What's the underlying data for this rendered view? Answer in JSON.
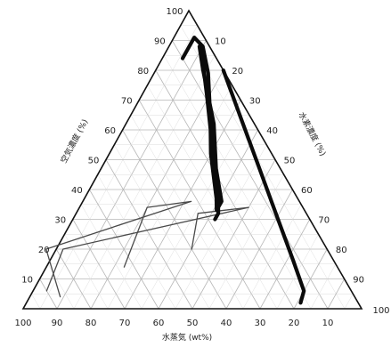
{
  "chart_data": {
    "type": "ternary",
    "title": "",
    "axes": {
      "bottom": {
        "label": "水蒸気 (wt%)",
        "ticks": [
          "100",
          "90",
          "80",
          "70",
          "60",
          "50",
          "40",
          "30",
          "20",
          "10"
        ],
        "end_label": "100"
      },
      "left": {
        "label": "空気濃度 (%)",
        "ticks": [
          "10",
          "20",
          "30",
          "40",
          "50",
          "60",
          "70",
          "80",
          "90"
        ],
        "apex_label": "100"
      },
      "right": {
        "label": "水素濃度 (%)",
        "ticks": [
          "10",
          "20",
          "30",
          "40",
          "50",
          "60",
          "70",
          "80",
          "90"
        ]
      }
    },
    "grid": true,
    "series": [
      {
        "style": "thin",
        "points": [
          [
            20,
            40
          ],
          [
            32,
            32
          ],
          [
            34,
            16
          ],
          [
            20,
            78
          ],
          [
            6,
            90
          ]
        ]
      },
      {
        "style": "thin",
        "points": [
          [
            14,
            63
          ],
          [
            34,
            46
          ],
          [
            36,
            32
          ],
          [
            20,
            83
          ],
          [
            4,
            87
          ]
        ]
      },
      {
        "style": "thick",
        "points": [
          [
            84,
            10
          ],
          [
            91,
            3
          ],
          [
            88,
            2
          ],
          [
            79,
            5
          ],
          [
            64,
            12
          ],
          [
            52,
            18
          ],
          [
            37,
            24
          ],
          [
            33,
            26
          ],
          [
            36,
            23
          ],
          [
            47,
            19
          ],
          [
            62,
            12
          ],
          [
            80,
            6
          ],
          [
            88,
            3
          ],
          [
            82,
            5
          ],
          [
            72,
            9
          ],
          [
            60,
            14
          ],
          [
            48,
            19
          ],
          [
            38,
            23
          ],
          [
            32,
            26
          ],
          [
            30,
            28
          ]
        ]
      },
      {
        "style": "thick",
        "points": [
          [
            80,
            0
          ],
          [
            64,
            3
          ],
          [
            48,
            6
          ],
          [
            32,
            9
          ],
          [
            16,
            12
          ],
          [
            6,
            14
          ],
          [
            2,
            17
          ]
        ]
      }
    ]
  }
}
